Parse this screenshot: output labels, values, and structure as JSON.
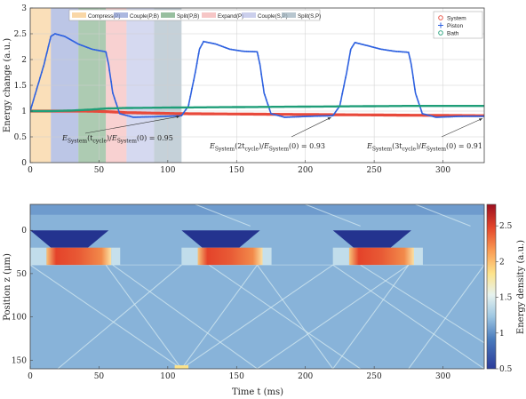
{
  "chart_data": [
    {
      "type": "line",
      "ylabel": "Energy change (a.u.)",
      "xlim": [
        0,
        330
      ],
      "ylim": [
        0,
        3
      ],
      "grid": true,
      "x_ticks": [
        0,
        50,
        100,
        150,
        200,
        250,
        300
      ],
      "y_ticks": [
        0,
        0.5,
        1,
        1.5,
        2,
        2.5,
        3
      ],
      "y_tick_labels": [
        "0",
        "0.5",
        "1",
        "1.5",
        "2",
        "2.5",
        "3"
      ],
      "x_tick_labels": [
        "0",
        "50",
        "100",
        "150",
        "200",
        "250",
        "300"
      ],
      "phases": [
        {
          "label": "Compress(P)",
          "start": 0,
          "end": 15,
          "color": "#f7c98a"
        },
        {
          "label": "Couple(P,B)",
          "start": 15,
          "end": 35,
          "color": "#8fa0d6"
        },
        {
          "label": "Split(P,B)",
          "start": 35,
          "end": 55,
          "color": "#76a97f"
        },
        {
          "label": "Expand(P)",
          "start": 55,
          "end": 70,
          "color": "#f3b3b3"
        },
        {
          "label": "Couple(S,P)",
          "start": 70,
          "end": 90,
          "color": "#b9bfe6"
        },
        {
          "label": "Split(S,P)",
          "start": 90,
          "end": 110,
          "color": "#9fb3bf"
        }
      ],
      "series": [
        {
          "name": "System",
          "color": "#e8493b",
          "marker": "o",
          "x": [
            0,
            20,
            40,
            55,
            70,
            110,
            165,
            220,
            275,
            330
          ],
          "y": [
            1.0,
            1.0,
            1.0,
            0.99,
            0.97,
            0.95,
            0.94,
            0.93,
            0.92,
            0.91
          ]
        },
        {
          "name": "Piston",
          "color": "#2f62e0",
          "marker": "+",
          "x": [
            0,
            10,
            15,
            18,
            25,
            35,
            45,
            55,
            57,
            60,
            65,
            75,
            90,
            100,
            110,
            115,
            120,
            123,
            126,
            135,
            145,
            155,
            165,
            167,
            170,
            175,
            185,
            195,
            205,
            220,
            225,
            230,
            233,
            236,
            245,
            255,
            265,
            275,
            277,
            280,
            285,
            295,
            305,
            315,
            330
          ],
          "y": [
            1.0,
            1.9,
            2.45,
            2.5,
            2.45,
            2.3,
            2.2,
            2.15,
            1.9,
            1.35,
            0.95,
            0.88,
            0.89,
            0.9,
            0.91,
            1.1,
            1.75,
            2.2,
            2.35,
            2.3,
            2.2,
            2.16,
            2.15,
            1.9,
            1.35,
            0.95,
            0.88,
            0.89,
            0.9,
            0.91,
            1.1,
            1.75,
            2.2,
            2.33,
            2.27,
            2.2,
            2.16,
            2.14,
            1.9,
            1.35,
            0.95,
            0.88,
            0.89,
            0.9,
            0.9
          ]
        },
        {
          "name": "Bath",
          "color": "#1f9e78",
          "marker": "o",
          "x": [
            0,
            15,
            30,
            45,
            55,
            70,
            110,
            165,
            220,
            275,
            330
          ],
          "y": [
            1.0,
            1.0,
            1.01,
            1.03,
            1.05,
            1.06,
            1.07,
            1.08,
            1.09,
            1.1,
            1.1
          ]
        }
      ],
      "annotations": [
        {
          "text_main": "E",
          "text_sub1": "System",
          "text_arg": "(t",
          "text_sub2": "cycle",
          "text_rest": ")/",
          "text_main2": "E",
          "text_sub3": "System",
          "text_tail": "(0) = 0.95",
          "arrow_to": [
            110,
            0.95
          ]
        },
        {
          "text_main": "E",
          "text_sub1": "System",
          "text_arg": "(2t",
          "text_sub2": "cycle",
          "text_rest": ")/",
          "text_main2": "E",
          "text_sub3": "System",
          "text_tail": "(0) = 0.93",
          "arrow_to": [
            220,
            0.93
          ]
        },
        {
          "text_main": "E",
          "text_sub1": "System",
          "text_arg": "(3t",
          "text_sub2": "cycle",
          "text_rest": ")/",
          "text_main2": "E",
          "text_sub3": "System",
          "text_tail": "(0) = 0.91",
          "arrow_to": [
            330,
            0.91
          ]
        }
      ],
      "legend": "top-right"
    },
    {
      "type": "heatmap",
      "xlabel": "Time t (ms)",
      "ylabel": "Position z (μm)",
      "colorbar_label": "Energy density (a.u.)",
      "xlim": [
        0,
        330
      ],
      "ylim": [
        -30,
        160
      ],
      "x_ticks": [
        0,
        50,
        100,
        150,
        200,
        250,
        300
      ],
      "x_tick_labels": [
        "0",
        "50",
        "100",
        "150",
        "200",
        "250",
        "300"
      ],
      "y_ticks": [
        0,
        50,
        100,
        150
      ],
      "y_tick_labels": [
        "0",
        "50",
        "100",
        "150"
      ],
      "clim": [
        0.5,
        2.8
      ],
      "colorbar_ticks": [
        0.5,
        1,
        1.5,
        2,
        2.5
      ],
      "colorbar_tick_labels": [
        "0.5",
        "1",
        "1.5",
        "2",
        "2.5"
      ],
      "colormap": "RdYlBu_r",
      "piston_cycles": [
        {
          "start": 0,
          "end": 57,
          "compress_end": 15
        },
        {
          "start": 110,
          "end": 167,
          "compress_end": 125
        },
        {
          "start": 220,
          "end": 277,
          "compress_end": 235
        }
      ],
      "piston_region_z": [
        0,
        40
      ],
      "background_value": 1.15
    }
  ]
}
